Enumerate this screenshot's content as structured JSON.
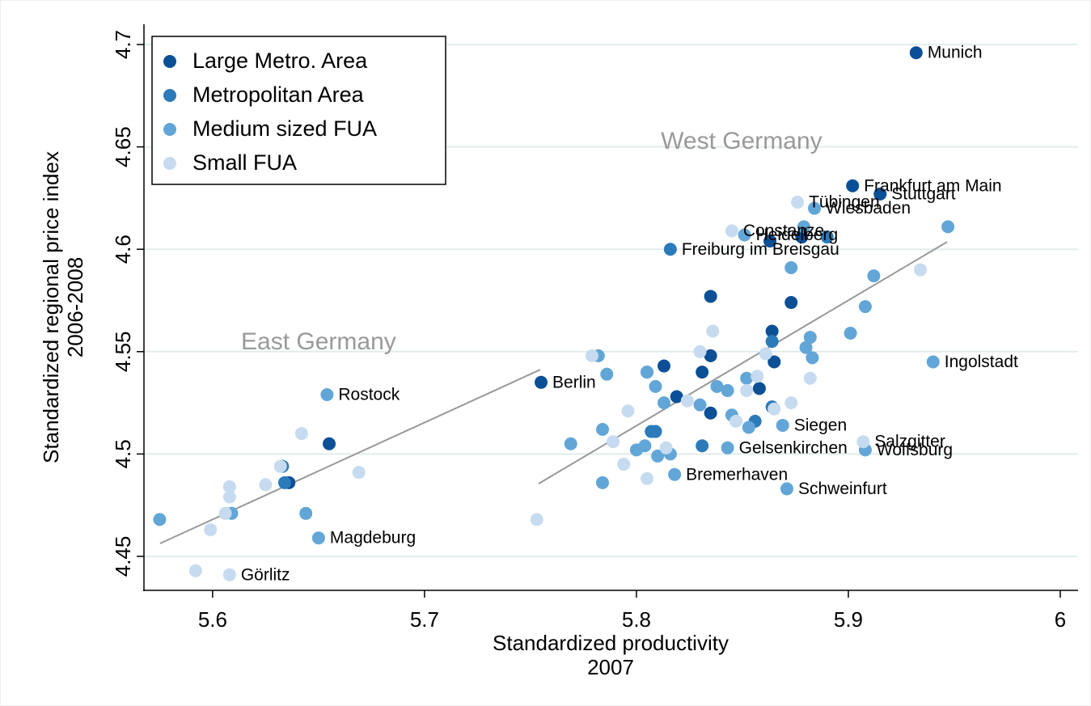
{
  "chart_data": {
    "type": "scatter",
    "xlabel": [
      "Standardized productivity",
      "2007"
    ],
    "ylabel": [
      "Standardized regional price index",
      "2006-2008"
    ],
    "xlim": [
      5.5676,
      6.0084
    ],
    "ylim": [
      4.4334,
      4.7099
    ],
    "xticks": [
      5.6,
      5.7,
      5.8,
      5.9,
      6
    ],
    "yticks": [
      4.45,
      4.5,
      4.55,
      4.6,
      4.65,
      4.7
    ],
    "grid": true,
    "legend": "top-left",
    "series": [
      {
        "name": "Large Metro. Area",
        "color": "#0b4f96",
        "x": [
          5.932,
          5.902,
          5.915,
          5.863,
          5.878,
          5.755,
          5.835,
          5.873,
          5.864,
          5.865,
          5.813,
          5.831,
          5.819,
          5.655,
          5.636,
          5.835,
          5.835,
          5.858
        ],
        "y": [
          4.696,
          4.631,
          4.627,
          4.604,
          4.606,
          4.535,
          4.577,
          4.574,
          4.56,
          4.545,
          4.543,
          4.54,
          4.528,
          4.505,
          4.486,
          4.548,
          4.52,
          4.532
        ],
        "labels": [
          "Munich",
          "Frankfurt am Main",
          "Stuttgart",
          null,
          null,
          "Berlin",
          null,
          null,
          null,
          null,
          null,
          null,
          null,
          null,
          null,
          null,
          null,
          null
        ]
      },
      {
        "name": "Metropolitan Area",
        "color": "#2b7bba",
        "x": [
          5.89,
          5.816,
          5.634,
          5.633,
          5.864,
          5.807,
          5.831,
          5.856,
          5.864,
          5.805,
          5.809
        ],
        "y": [
          4.606,
          4.6,
          4.486,
          4.494,
          4.555,
          4.511,
          4.504,
          4.516,
          4.523,
          4.54,
          4.511
        ],
        "labels": [
          null,
          "Freiburg im Breisgau",
          null,
          null,
          null,
          null,
          null,
          null,
          null,
          null,
          null
        ]
      },
      {
        "name": "Medium sized FUA",
        "color": "#62a6d7",
        "x": [
          5.654,
          5.65,
          5.644,
          5.609,
          5.575,
          5.947,
          5.884,
          5.879,
          5.851,
          5.873,
          5.912,
          5.908,
          5.901,
          5.882,
          5.88,
          5.883,
          5.94,
          5.852,
          5.782,
          5.786,
          5.805,
          5.809,
          5.813,
          5.83,
          5.838,
          5.843,
          5.845,
          5.853,
          5.869,
          5.784,
          5.769,
          5.8,
          5.804,
          5.81,
          5.816,
          5.843,
          5.818,
          5.784,
          5.908,
          5.871
        ],
        "y": [
          4.529,
          4.459,
          4.471,
          4.471,
          4.468,
          4.611,
          4.62,
          4.611,
          4.607,
          4.591,
          4.587,
          4.572,
          4.559,
          4.557,
          4.552,
          4.547,
          4.545,
          4.537,
          4.548,
          4.539,
          4.54,
          4.533,
          4.525,
          4.524,
          4.533,
          4.531,
          4.519,
          4.513,
          4.514,
          4.512,
          4.505,
          4.502,
          4.504,
          4.499,
          4.5,
          4.503,
          4.49,
          4.486,
          4.502,
          4.483
        ],
        "labels": [
          "Rostock",
          "Magdeburg",
          null,
          null,
          null,
          null,
          "Wiesbaden",
          null,
          "Heidelberg",
          null,
          null,
          null,
          null,
          null,
          null,
          null,
          "Ingolstadt",
          null,
          null,
          null,
          null,
          null,
          null,
          null,
          null,
          null,
          null,
          null,
          "Siegen",
          null,
          null,
          null,
          null,
          null,
          null,
          "Gelsenkirchen",
          "Bremerhaven",
          null,
          "Wolfsburg",
          "Schweinfurt"
        ]
      },
      {
        "name": "Small FUA",
        "color": "#c6dbef",
        "x": [
          5.876,
          5.845,
          5.934,
          5.836,
          5.861,
          5.857,
          5.779,
          5.83,
          5.882,
          5.873,
          5.865,
          5.852,
          5.824,
          5.796,
          5.847,
          5.789,
          5.907,
          5.814,
          5.794,
          5.805,
          5.753,
          5.669,
          5.642,
          5.632,
          5.625,
          5.608,
          5.608,
          5.606,
          5.599,
          5.608,
          5.592
        ],
        "y": [
          4.623,
          4.609,
          4.59,
          4.56,
          4.549,
          4.538,
          4.548,
          4.55,
          4.537,
          4.525,
          4.522,
          4.531,
          4.526,
          4.521,
          4.516,
          4.506,
          4.506,
          4.503,
          4.495,
          4.488,
          4.468,
          4.491,
          4.51,
          4.494,
          4.485,
          4.484,
          4.479,
          4.471,
          4.463,
          4.441,
          4.443
        ],
        "labels": [
          "Tübingen",
          "Constanze",
          null,
          null,
          null,
          null,
          null,
          null,
          null,
          null,
          null,
          null,
          null,
          null,
          null,
          null,
          "Salzgitter",
          null,
          null,
          null,
          null,
          null,
          null,
          null,
          null,
          null,
          null,
          null,
          null,
          "Görlitz",
          null
        ]
      }
    ],
    "fit_lines": [
      {
        "color": "#999999",
        "x": [
          5.5752,
          5.7546
        ],
        "y": [
          4.4563,
          4.5412
        ]
      },
      {
        "color": "#999999",
        "x": [
          5.7538,
          5.9466
        ],
        "y": [
          4.4855,
          4.6036
        ]
      }
    ],
    "annotations": [
      {
        "text": "West Germany",
        "x": 5.8496,
        "y": 4.6522
      },
      {
        "text": "East Germany",
        "x": 5.65,
        "y": 4.5543
      }
    ]
  }
}
